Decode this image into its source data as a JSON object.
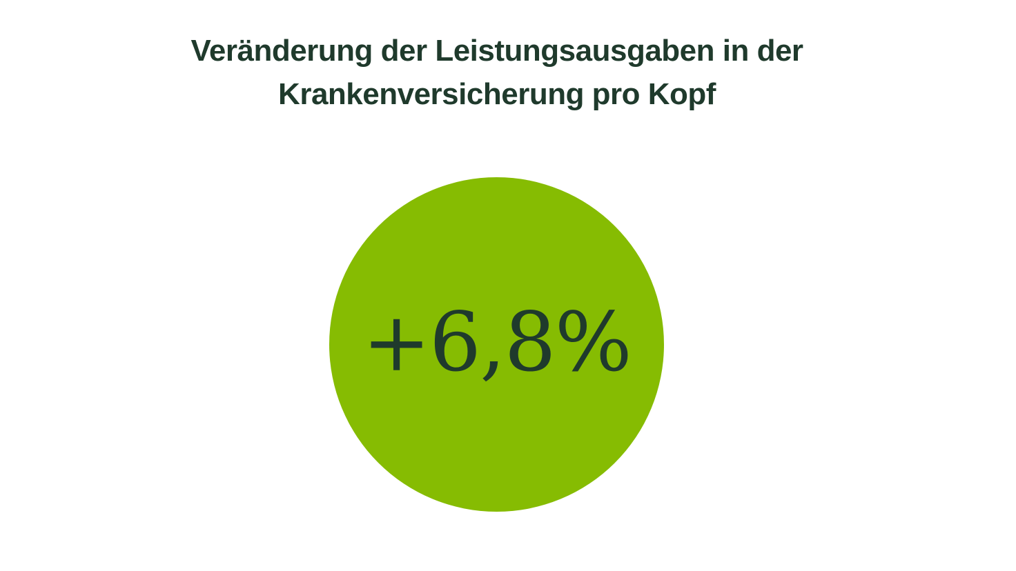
{
  "title": {
    "line1": "Veränderung der Leistungsausgaben in der",
    "line2": "Krankenversicherung pro Kopf"
  },
  "stat": {
    "value": "+6,8%"
  },
  "colors": {
    "background": "#ffffff",
    "circle": "#86bc02",
    "text": "#1f3a2c"
  }
}
